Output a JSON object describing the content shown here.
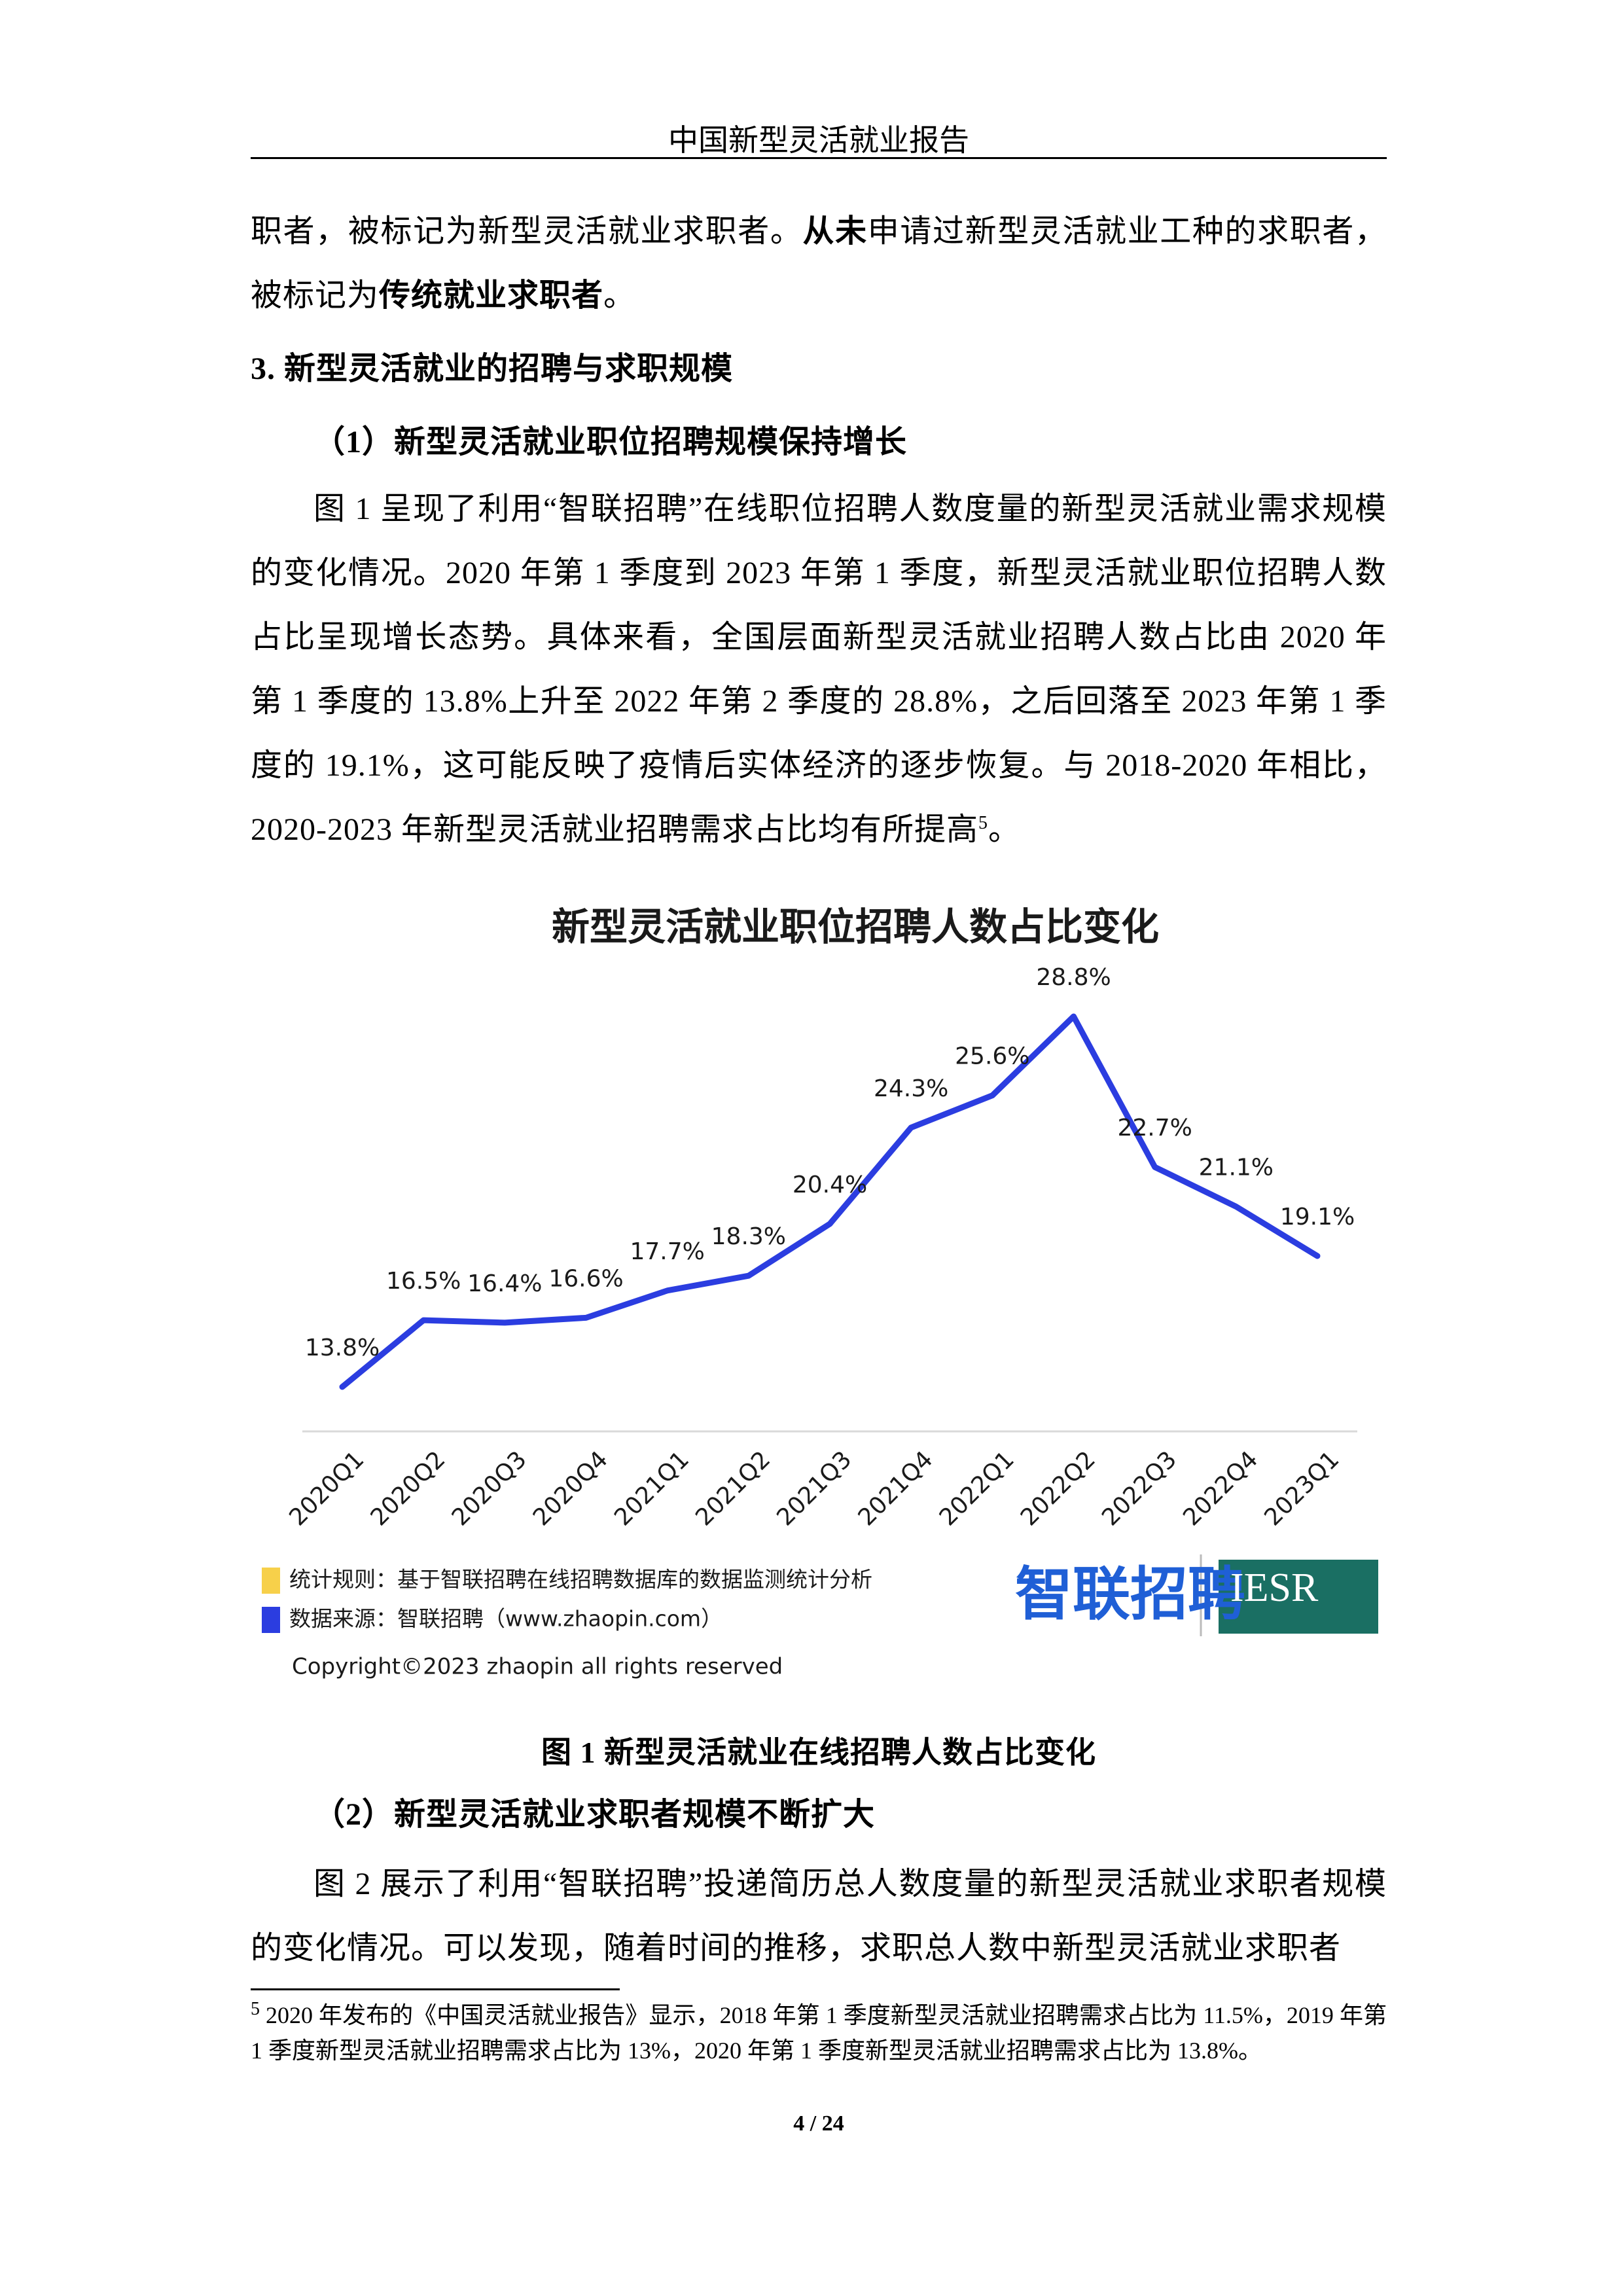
{
  "header": "中国新型灵活就业报告",
  "paragraph_1": [
    {
      "text": "职者，被标记为新型灵活就业求职者。"
    },
    {
      "text": "从未",
      "bold": true
    },
    {
      "text": "申请过新型灵活就业工种的求职者，被标记为"
    },
    {
      "text": "传统就业求职者",
      "bold": true
    },
    {
      "text": "。"
    }
  ],
  "section_heading": "3. 新型灵活就业的招聘与求职规模",
  "subheading_1": "（1）新型灵活就业职位招聘规模保持增长",
  "paragraph_2": [
    {
      "text": "图 1 呈现了利用“智联招聘”在线职位招聘人数度量的新型灵活就业需求规模的变化情况。2020 年第 1 季度到 2023 年第 1 季度，新型灵活就业职位招聘人数占比呈现增长态势。具体来看，全国层面新型灵活就业招聘人数占比由 2020 年第 1 季度的 13.8%上升至 2022 年第 2 季度的 28.8%，之后回落至 2023 年第 1 季度的 19.1%，这可能反映了疫情后实体经济的逐步恢复。与 2018-2020 年相比，2020-2023 年新型灵活就业招聘需求占比均有所提高"
    },
    {
      "text": "5",
      "sup": true
    },
    {
      "text": "。"
    }
  ],
  "chart_data": {
    "type": "line",
    "title": "新型灵活就业职位招聘人数占比变化",
    "categories": [
      "2020Q1",
      "2020Q2",
      "2020Q3",
      "2020Q4",
      "2021Q1",
      "2021Q2",
      "2021Q3",
      "2021Q4",
      "2022Q1",
      "2022Q2",
      "2022Q3",
      "2022Q4",
      "2023Q1"
    ],
    "values": [
      13.8,
      16.5,
      16.4,
      16.6,
      17.7,
      18.3,
      20.4,
      24.3,
      25.6,
      28.8,
      22.7,
      21.1,
      19.1
    ],
    "value_labels": [
      "13.8%",
      "16.5%",
      "16.4%",
      "16.6%",
      "17.7%",
      "18.3%",
      "20.4%",
      "24.3%",
      "25.6%",
      "28.8%",
      "22.7%",
      "21.1%",
      "19.1%"
    ],
    "color": "#2b3de0"
  },
  "chart_notes": [
    {
      "text": "统计规则：基于智联招聘在线招聘数据库的数据监测统计分析",
      "color": "#f7d04a"
    },
    {
      "text": "数据来源：智联招聘（www.zhaopin.com）",
      "color": "#2b3de0"
    }
  ],
  "logos": [
    "智联招聘",
    "IESR"
  ],
  "copyright": "Copyright©2023  zhaopin all rights reserved",
  "figure_caption": "图 1  新型灵活就业在线招聘人数占比变化",
  "subheading_2": "（2）新型灵活就业求职者规模不断扩大",
  "paragraph_3": [
    {
      "text": "图 2 展示了利用“智联招聘”投递简历总人数度量的新型灵活就业求职者规模的变化情况。可以发现，随着时间的推移，求职总人数中新型灵活就业求职者"
    }
  ],
  "footnote": {
    "marker": "5",
    "text": " 2020 年发布的《中国灵活就业报告》显示，2018 年第 1 季度新型灵活就业招聘需求占比为 11.5%，2019 年第 1 季度新型灵活就业招聘需求占比为 13%，2020 年第 1 季度新型灵活就业招聘需求占比为 13.8%。"
  },
  "page_number": "4 / 24"
}
